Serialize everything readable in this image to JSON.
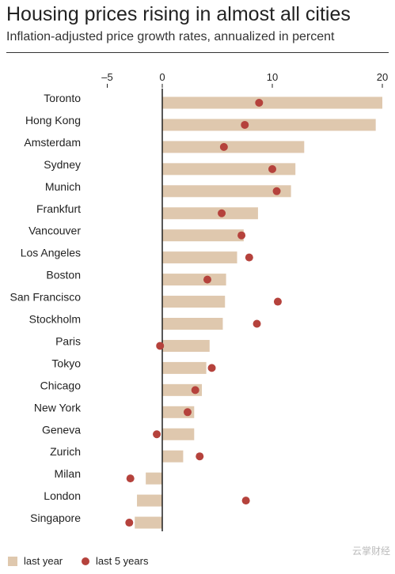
{
  "title": "Housing prices rising in almost all cities",
  "subtitle": "Inflation-adjusted price growth rates, annualized in percent",
  "watermark": "云掌财经",
  "colors": {
    "bar": "#dfc8ae",
    "dot": "#b5423c",
    "axis": "#222222"
  },
  "legend": {
    "bar_label": "last year",
    "dot_label": "last 5 years"
  },
  "chart_data": {
    "type": "bar",
    "orientation": "horizontal",
    "title": "Housing prices rising in almost all cities",
    "subtitle": "Inflation-adjusted price growth rates, annualized in percent",
    "xlim": [
      -5,
      20
    ],
    "xticks": [
      -5,
      0,
      10,
      20
    ],
    "xtick_labels": [
      "–5",
      "0",
      "10",
      "20"
    ],
    "categories": [
      "Toronto",
      "Hong Kong",
      "Amsterdam",
      "Sydney",
      "Munich",
      "Frankfurt",
      "Vancouver",
      "Los Angeles",
      "Boston",
      "San Francisco",
      "Stockholm",
      "Paris",
      "Tokyo",
      "Chicago",
      "New York",
      "Geneva",
      "Zurich",
      "Milan",
      "London",
      "Singapore"
    ],
    "series": [
      {
        "name": "last year",
        "kind": "bar",
        "values": [
          20.0,
          19.4,
          12.9,
          12.1,
          11.7,
          8.7,
          7.4,
          6.8,
          5.8,
          5.7,
          5.5,
          4.3,
          4.0,
          3.6,
          2.9,
          2.9,
          1.9,
          -1.5,
          -2.3,
          -2.5
        ]
      },
      {
        "name": "last 5 years",
        "kind": "dot",
        "values": [
          8.8,
          7.5,
          5.6,
          10.0,
          10.4,
          5.4,
          7.2,
          7.9,
          4.1,
          10.5,
          8.6,
          -0.2,
          4.5,
          3.0,
          2.3,
          -0.5,
          3.4,
          -2.9,
          7.6,
          -3.0
        ]
      }
    ],
    "legend_position": "bottom-left",
    "grid": false
  }
}
